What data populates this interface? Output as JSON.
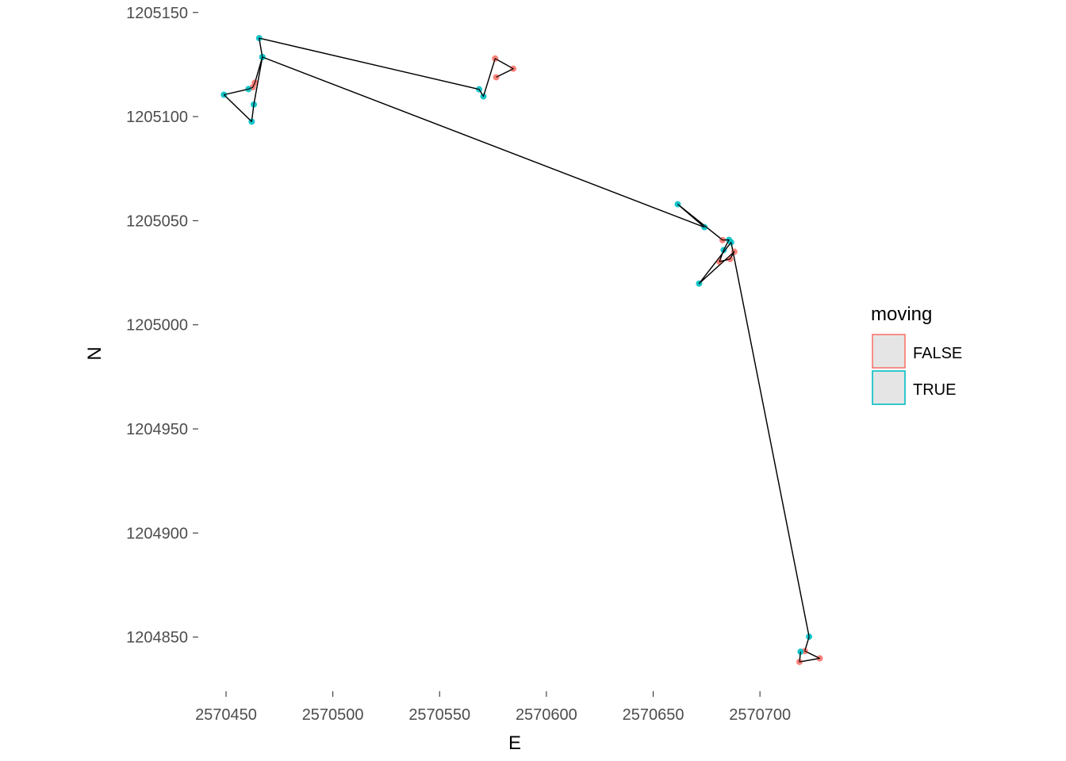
{
  "chart_data": {
    "type": "scatter",
    "title": "",
    "xlabel": "E",
    "ylabel": "N",
    "xlim": [
      2570437,
      2570733
    ],
    "ylim": [
      1204824,
      1205156
    ],
    "x_ticks": [
      2570450,
      2570500,
      2570550,
      2570600,
      2570650,
      2570700
    ],
    "x_tick_labels": [
      "2570450",
      "2570500",
      "2570550",
      "2570600",
      "2570650",
      "2570700"
    ],
    "y_ticks": [
      1204850,
      1204900,
      1204950,
      1205000,
      1205050,
      1205100,
      1205150
    ],
    "y_tick_labels": [
      "1204850",
      "1204900",
      "1204950",
      "1205000",
      "1205050",
      "1205100",
      "1205150"
    ],
    "grid": false,
    "legend": {
      "title": "moving",
      "position": "right",
      "entries": [
        {
          "label": "FALSE",
          "color": "#F8766D"
        },
        {
          "label": "TRUE",
          "color": "#00BFC4"
        }
      ]
    },
    "path_color": "#000000",
    "points": [
      {
        "x": 2570576.5,
        "y": 1205118.9,
        "moving": "FALSE"
      },
      {
        "x": 2570584.5,
        "y": 1205123.0,
        "moving": "FALSE"
      },
      {
        "x": 2570576.0,
        "y": 1205127.9,
        "moving": "FALSE"
      },
      {
        "x": 2570570.5,
        "y": 1205109.7,
        "moving": "TRUE"
      },
      {
        "x": 2570568.5,
        "y": 1205113.1,
        "moving": "TRUE"
      },
      {
        "x": 2570465.5,
        "y": 1205137.7,
        "moving": "TRUE"
      },
      {
        "x": 2570467.0,
        "y": 1205128.6,
        "moving": "TRUE"
      },
      {
        "x": 2570463.5,
        "y": 1205116.3,
        "moving": "FALSE"
      },
      {
        "x": 2570462.5,
        "y": 1205114.1,
        "moving": "FALSE"
      },
      {
        "x": 2570460.5,
        "y": 1205113.2,
        "moving": "TRUE"
      },
      {
        "x": 2570449.0,
        "y": 1205110.5,
        "moving": "TRUE"
      },
      {
        "x": 2570462.0,
        "y": 1205097.6,
        "moving": "TRUE"
      },
      {
        "x": 2570463.0,
        "y": 1205105.8,
        "moving": "TRUE"
      },
      {
        "x": 2570467.0,
        "y": 1205128.6,
        "moving": "TRUE"
      },
      {
        "x": 2570674.0,
        "y": 1205046.9,
        "moving": "TRUE"
      },
      {
        "x": 2570661.5,
        "y": 1205057.9,
        "moving": "TRUE"
      },
      {
        "x": 2570682.5,
        "y": 1205040.7,
        "moving": "FALSE"
      },
      {
        "x": 2570685.5,
        "y": 1205040.8,
        "moving": "TRUE"
      },
      {
        "x": 2570683.0,
        "y": 1205035.9,
        "moving": "TRUE"
      },
      {
        "x": 2570681.0,
        "y": 1205030.3,
        "moving": "FALSE"
      },
      {
        "x": 2570686.0,
        "y": 1205031.6,
        "moving": "FALSE"
      },
      {
        "x": 2570688.0,
        "y": 1205035.1,
        "moving": "FALSE"
      },
      {
        "x": 2570671.5,
        "y": 1205019.8,
        "moving": "TRUE"
      },
      {
        "x": 2570686.5,
        "y": 1205039.6,
        "moving": "TRUE"
      },
      {
        "x": 2570723.0,
        "y": 1204850.2,
        "moving": "TRUE"
      },
      {
        "x": 2570721.0,
        "y": 1204843.3,
        "moving": "FALSE"
      },
      {
        "x": 2570728.0,
        "y": 1204839.8,
        "moving": "FALSE"
      },
      {
        "x": 2570718.5,
        "y": 1204838.1,
        "moving": "FALSE"
      },
      {
        "x": 2570719.0,
        "y": 1204843.0,
        "moving": "TRUE"
      }
    ]
  }
}
